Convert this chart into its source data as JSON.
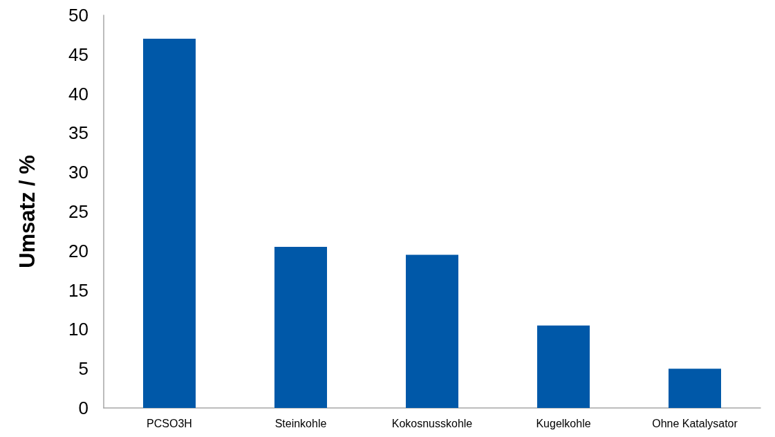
{
  "chart_data": {
    "type": "bar",
    "ylabel": "Umsatz / %",
    "categories": [
      "PCSO3H",
      "Steinkohle",
      "Kokosnusskohle",
      "Kugelkohle",
      "Ohne Katalysator"
    ],
    "values": [
      47,
      20.5,
      19.5,
      10.5,
      5
    ],
    "color": "#0058a8",
    "ylim": [
      0,
      50
    ],
    "yticks": [
      0,
      5,
      10,
      15,
      20,
      25,
      30,
      35,
      40,
      45,
      50
    ]
  }
}
